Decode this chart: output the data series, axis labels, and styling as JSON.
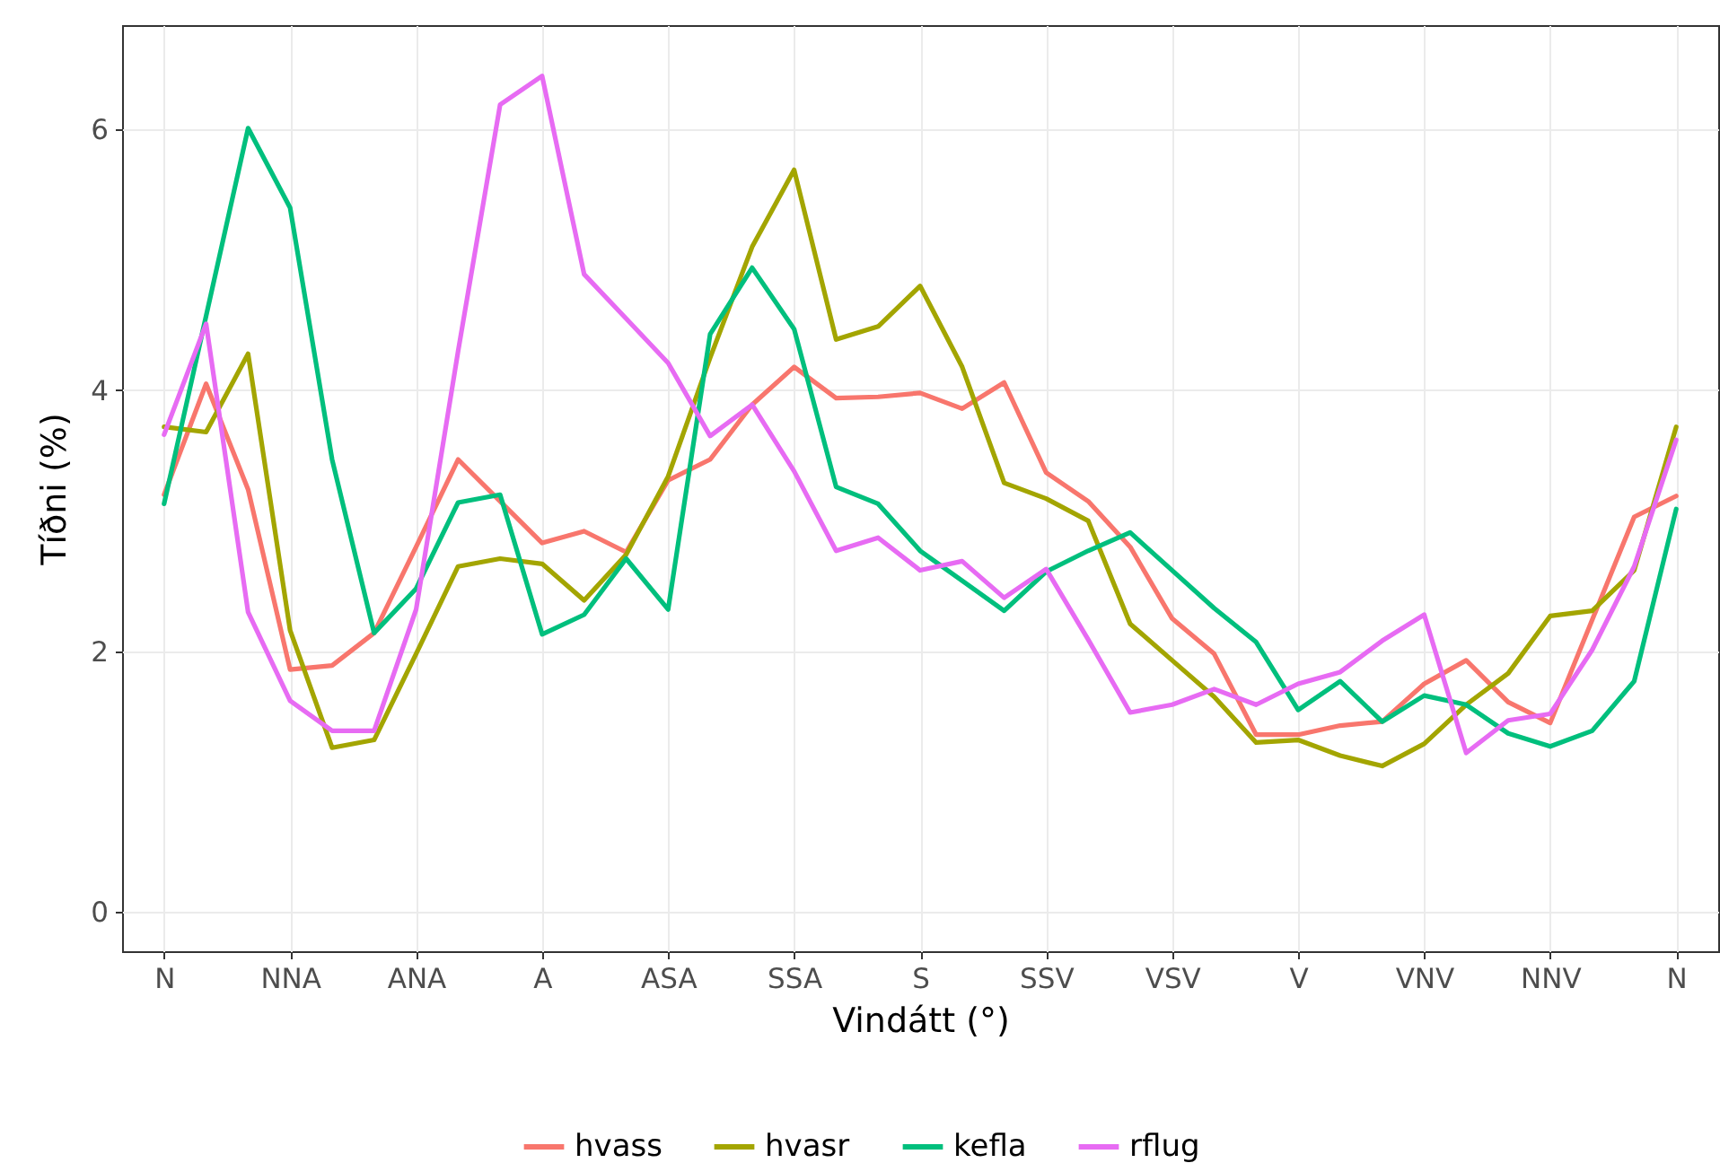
{
  "chart_data": {
    "type": "line",
    "xlabel": "Vindátt (°)",
    "ylabel": "Tíðni (%)",
    "categories": [
      "N",
      null,
      null,
      "NNA",
      null,
      null,
      "ANA",
      null,
      null,
      "A",
      null,
      null,
      "ASA",
      null,
      null,
      "SSA",
      null,
      null,
      "S",
      null,
      null,
      "SSV",
      null,
      null,
      "VSV",
      null,
      null,
      "V",
      null,
      null,
      "VNV",
      null,
      null,
      "NNV",
      null,
      null,
      "N"
    ],
    "ylim": [
      -0.3,
      6.8
    ],
    "yticks": [
      0,
      2,
      4,
      6
    ],
    "grid": true,
    "legend": "bottom",
    "line_style": "solid",
    "series": [
      {
        "name": "hvass",
        "color": "#f8766d",
        "values": [
          3.2,
          4.05,
          3.24,
          1.86,
          1.89,
          2.14,
          2.8,
          3.47,
          3.15,
          2.83,
          2.92,
          2.76,
          3.31,
          3.47,
          3.89,
          4.18,
          3.94,
          3.95,
          3.98,
          3.86,
          4.06,
          3.37,
          3.15,
          2.8,
          2.25,
          1.98,
          1.36,
          1.36,
          1.43,
          1.46,
          1.75,
          1.93,
          1.61,
          1.45,
          2.24,
          3.03,
          3.19
        ]
      },
      {
        "name": "hvasr",
        "color": "#a3a500",
        "values": [
          3.72,
          3.68,
          4.28,
          2.16,
          1.26,
          1.32,
          1.98,
          2.65,
          2.71,
          2.67,
          2.39,
          2.74,
          3.34,
          4.25,
          5.1,
          5.69,
          4.39,
          4.49,
          4.8,
          4.18,
          3.29,
          3.17,
          3.0,
          2.21,
          1.93,
          1.65,
          1.3,
          1.32,
          1.2,
          1.12,
          1.29,
          1.59,
          1.83,
          2.27,
          2.31,
          2.62,
          3.72
        ]
      },
      {
        "name": "kefla",
        "color": "#00bf7d",
        "values": [
          3.13,
          4.57,
          6.01,
          5.4,
          3.47,
          2.14,
          2.48,
          3.14,
          3.2,
          2.13,
          2.28,
          2.71,
          2.32,
          4.43,
          4.94,
          4.47,
          3.26,
          3.13,
          2.77,
          2.54,
          2.31,
          2.61,
          2.77,
          2.91,
          2.62,
          2.33,
          2.07,
          1.55,
          1.77,
          1.46,
          1.66,
          1.59,
          1.37,
          1.27,
          1.39,
          1.77,
          3.09
        ]
      },
      {
        "name": "rflug",
        "color": "#e76bf3",
        "values": [
          3.66,
          4.51,
          2.3,
          1.62,
          1.39,
          1.39,
          2.32,
          4.3,
          6.19,
          6.41,
          4.89,
          4.55,
          4.21,
          3.65,
          3.89,
          3.38,
          2.77,
          2.87,
          2.62,
          2.69,
          2.41,
          2.63,
          2.09,
          1.53,
          1.59,
          1.71,
          1.59,
          1.75,
          1.84,
          2.08,
          2.28,
          1.22,
          1.47,
          1.52,
          2.01,
          2.65,
          3.62
        ]
      }
    ]
  }
}
